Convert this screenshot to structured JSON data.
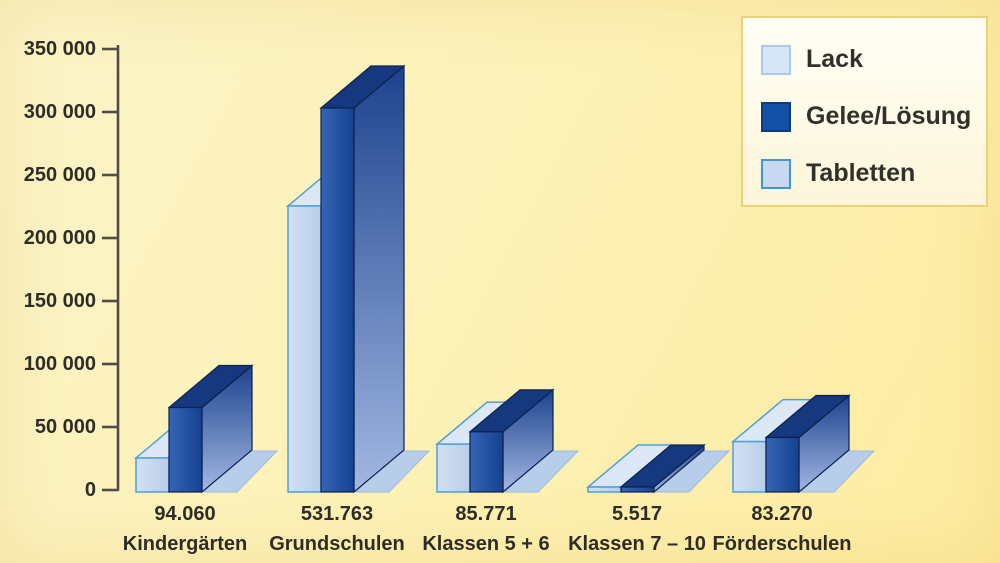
{
  "chart_data": {
    "type": "bar",
    "style": "3d-bars",
    "title": "",
    "categories": [
      "Kindergärten",
      "Grundschulen",
      "Klassen 5 + 6",
      "Klassen 7 – 10",
      "Förderschulen"
    ],
    "category_total_labels": [
      "94.060",
      "531.763",
      "85.771",
      "5.517",
      "83.270"
    ],
    "category_totals": [
      94060,
      531763,
      85771,
      5517,
      83270
    ],
    "series": [
      {
        "name": "Lack",
        "values": [
          27000,
          227000,
          38000,
          2600,
          40000
        ]
      },
      {
        "name": "Gelee/Lösung",
        "values": [
          67060,
          304763,
          47771,
          2917,
          43270
        ]
      },
      {
        "name": "Tabletten",
        "values": [
          0,
          0,
          0,
          0,
          0
        ]
      }
    ],
    "y_axis": {
      "min": 0,
      "max": 350000,
      "step": 50000,
      "tick_labels": [
        "0",
        "50 000",
        "100 000",
        "150 000",
        "200 000",
        "250 000",
        "300 000",
        "350 000"
      ]
    },
    "grid": false,
    "legend_position": "top-right"
  },
  "legend": {
    "items": [
      {
        "label": "Lack",
        "fill": "#d8e7f7",
        "border": "#a9c9e9"
      },
      {
        "label": "Gelee/Lösung",
        "fill": "#1450a5",
        "border": "#0b3a80"
      },
      {
        "label": "Tabletten",
        "fill": "#c7d8f0",
        "border": "#4197d4"
      }
    ]
  },
  "colors": {
    "background_start": "#fbf4c9",
    "background_end": "#fdeca0",
    "axis": "#514d45",
    "text": "#2f2c26",
    "lack_front_light": "#d3e0f2",
    "lack_front_dark": "#b9cde9",
    "lack_top": "#dce8f6",
    "lack_edge": "#4f9fd6",
    "gelee_front_light": "#3565b6",
    "gelee_front_dark": "#15418f",
    "gelee_top": "#16387f",
    "gelee_side_top": "#1d428e",
    "gelee_side_bottom": "#a2b8e2",
    "gelee_edge": "#0c2150",
    "tabletten_plate": "#b7cde9",
    "tabletten_plate_edge": "#9dbbdd",
    "legend_border": "#ecd07a"
  }
}
